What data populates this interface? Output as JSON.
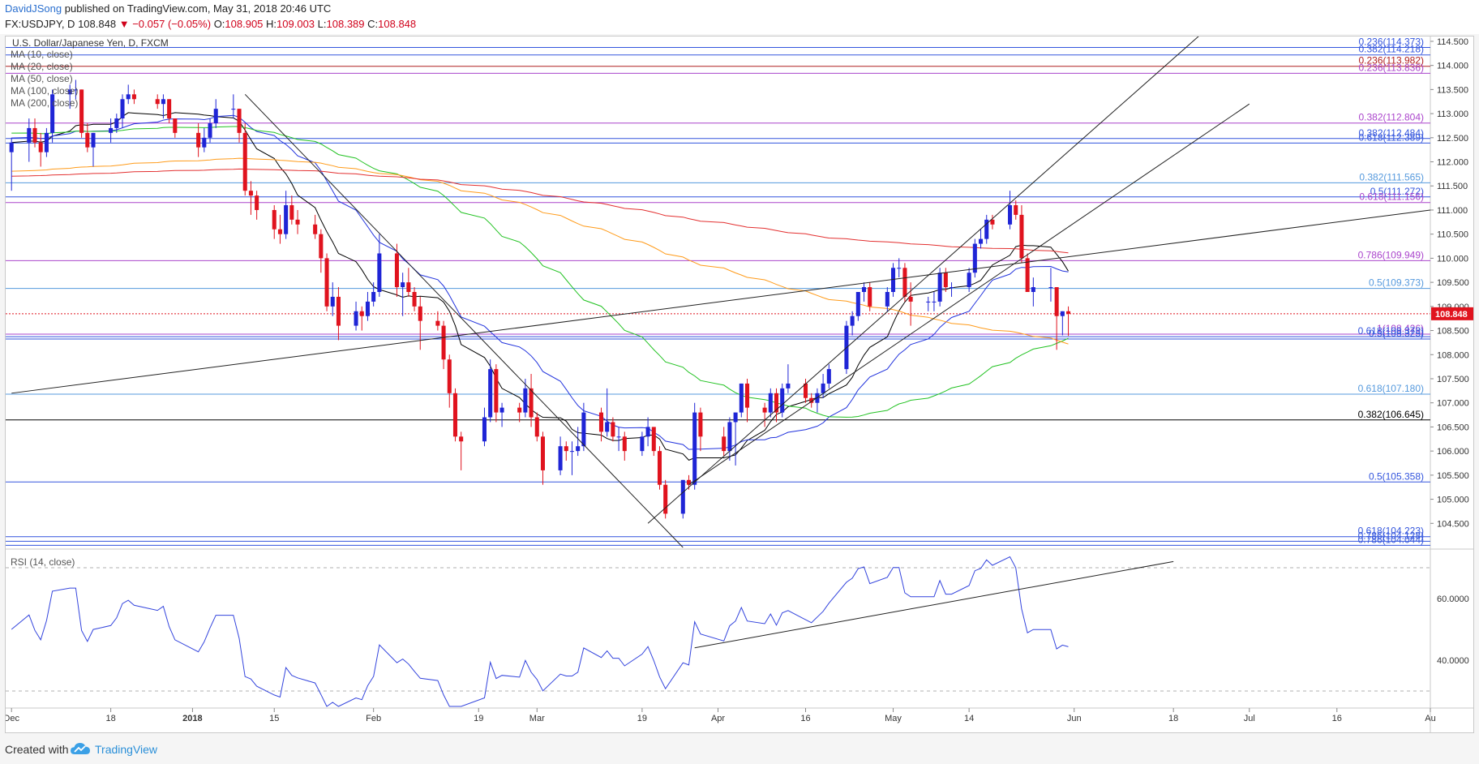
{
  "header": {
    "author": "DavidJSong",
    "published_text": "published on TradingView.com, May 31, 2018 20:46 UTC",
    "symbol": "FX:USDJPY, D",
    "last": "108.848",
    "change": "−0.057 (−0.05%)",
    "open_label": "O:",
    "open": "108.905",
    "high_label": "H:",
    "high": "109.003",
    "low_label": "L:",
    "low": "108.389",
    "close_label": "C:",
    "close": "108.848"
  },
  "legend": {
    "title": "U.S. Dollar/Japanese Yen, D, FXCM",
    "items": [
      "MA (10, close)",
      "MA (20, close)",
      "MA (50, close)",
      "MA (100, close)",
      "MA (200, close)"
    ]
  },
  "rsi": {
    "label": "RSI (14, close)"
  },
  "footer": {
    "created_with": "Created with",
    "brand": "TradingView"
  },
  "colors": {
    "up": "#1f25d6",
    "down": "#e0131e",
    "ma10": "#000000",
    "ma20": "#2233dd",
    "ma50": "#22c222",
    "ma100": "#ff9b1a",
    "ma200": "#e33030",
    "last_price_badge": "#e0131e"
  },
  "chart_data": {
    "type": "candlestick",
    "title": "U.S. Dollar/Japanese Yen, D, FXCM",
    "ylim": [
      104.0,
      114.6
    ],
    "y_ticks": [
      "114.500",
      "114.000",
      "113.500",
      "113.000",
      "112.500",
      "112.000",
      "111.500",
      "111.000",
      "110.500",
      "110.000",
      "109.500",
      "109.000",
      "108.500",
      "108.000",
      "107.500",
      "107.000",
      "106.500",
      "106.000",
      "105.500",
      "105.000",
      "104.500"
    ],
    "x_ticks": [
      "Dec",
      "18",
      "2018",
      "15",
      "Feb",
      "19",
      "Mar",
      "19",
      "Apr",
      "16",
      "May",
      "14",
      "Jun",
      "18",
      "Jul",
      "16",
      "Au"
    ],
    "last_price": 108.848,
    "last_price_label": "108.848",
    "candles": [
      [
        "2017-12-01",
        112.2,
        112.5,
        111.4,
        112.4
      ],
      [
        "2017-12-04",
        112.4,
        112.9,
        112.0,
        112.7
      ],
      [
        "2017-12-05",
        112.7,
        112.9,
        112.3,
        112.4
      ],
      [
        "2017-12-06",
        112.4,
        112.6,
        111.9,
        112.2
      ],
      [
        "2017-12-07",
        112.2,
        112.7,
        112.1,
        112.6
      ],
      [
        "2017-12-08",
        112.6,
        113.5,
        112.4,
        113.4
      ],
      [
        "2017-12-11",
        113.4,
        113.6,
        113.1,
        113.5
      ],
      [
        "2017-12-12",
        113.5,
        113.7,
        113.3,
        113.5
      ],
      [
        "2017-12-13",
        113.5,
        113.5,
        112.5,
        112.6
      ],
      [
        "2017-12-14",
        112.6,
        112.8,
        112.2,
        112.3
      ],
      [
        "2017-12-15",
        112.3,
        112.6,
        111.9,
        112.6
      ],
      [
        "2017-12-18",
        112.6,
        112.9,
        112.4,
        112.7
      ],
      [
        "2017-12-19",
        112.7,
        113.0,
        112.6,
        112.9
      ],
      [
        "2017-12-20",
        112.9,
        113.4,
        112.7,
        113.3
      ],
      [
        "2017-12-21",
        113.3,
        113.6,
        113.2,
        113.4
      ],
      [
        "2017-12-22",
        113.4,
        113.5,
        113.2,
        113.3
      ],
      [
        "2017-12-26",
        113.3,
        113.4,
        113.1,
        113.2
      ],
      [
        "2017-12-27",
        113.2,
        113.4,
        112.9,
        113.3
      ],
      [
        "2017-12-28",
        113.3,
        113.3,
        112.8,
        112.9
      ],
      [
        "2017-12-29",
        112.9,
        112.9,
        112.5,
        112.6
      ],
      [
        "2018-01-02",
        112.6,
        112.8,
        112.1,
        112.3
      ],
      [
        "2018-01-03",
        112.3,
        112.7,
        112.2,
        112.5
      ],
      [
        "2018-01-04",
        112.5,
        112.9,
        112.4,
        112.8
      ],
      [
        "2018-01-05",
        112.8,
        113.3,
        112.7,
        113.1
      ],
      [
        "2018-01-08",
        113.1,
        113.4,
        112.9,
        113.1
      ],
      [
        "2018-01-09",
        113.1,
        113.1,
        112.4,
        112.6
      ],
      [
        "2018-01-10",
        112.6,
        112.8,
        111.3,
        111.4
      ],
      [
        "2018-01-11",
        111.4,
        111.6,
        110.9,
        111.3
      ],
      [
        "2018-01-12",
        111.3,
        111.4,
        110.8,
        111.0
      ],
      [
        "2018-01-15",
        111.0,
        111.1,
        110.4,
        110.6
      ],
      [
        "2018-01-16",
        110.6,
        110.9,
        110.3,
        110.5
      ],
      [
        "2018-01-17",
        110.5,
        111.4,
        110.4,
        111.1
      ],
      [
        "2018-01-18",
        111.1,
        111.3,
        110.7,
        110.8
      ],
      [
        "2018-01-19",
        110.8,
        111.0,
        110.5,
        110.7
      ],
      [
        "2018-01-22",
        110.7,
        110.9,
        110.4,
        110.5
      ],
      [
        "2018-01-23",
        110.5,
        110.6,
        109.7,
        110.0
      ],
      [
        "2018-01-24",
        110.0,
        110.1,
        108.9,
        109.0
      ],
      [
        "2018-01-25",
        109.0,
        109.5,
        108.8,
        109.2
      ],
      [
        "2018-01-26",
        109.2,
        109.4,
        108.3,
        108.6
      ],
      [
        "2018-01-29",
        108.6,
        109.1,
        108.5,
        108.9
      ],
      [
        "2018-01-30",
        108.9,
        109.0,
        108.5,
        108.8
      ],
      [
        "2018-01-31",
        108.8,
        109.3,
        108.7,
        109.1
      ],
      [
        "2018-02-01",
        109.1,
        109.5,
        109.0,
        109.3
      ],
      [
        "2018-02-02",
        109.3,
        110.5,
        109.2,
        110.1
      ],
      [
        "2018-02-05",
        110.1,
        110.3,
        109.2,
        109.4
      ],
      [
        "2018-02-06",
        109.4,
        109.7,
        108.8,
        109.5
      ],
      [
        "2018-02-07",
        109.5,
        109.8,
        109.2,
        109.3
      ],
      [
        "2018-02-08",
        109.3,
        109.4,
        108.9,
        109.0
      ],
      [
        "2018-02-09",
        109.0,
        109.2,
        108.1,
        108.7
      ],
      [
        "2018-02-12",
        108.7,
        108.9,
        108.5,
        108.6
      ],
      [
        "2018-02-13",
        108.6,
        108.7,
        107.7,
        107.9
      ],
      [
        "2018-02-14",
        107.9,
        108.0,
        106.9,
        107.2
      ],
      [
        "2018-02-15",
        107.2,
        107.3,
        106.2,
        106.3
      ],
      [
        "2018-02-16",
        106.3,
        106.4,
        105.6,
        106.2
      ],
      [
        "2018-02-20",
        106.2,
        106.9,
        106.1,
        106.7
      ],
      [
        "2018-02-21",
        106.7,
        107.9,
        106.6,
        107.7
      ],
      [
        "2018-02-22",
        107.7,
        107.8,
        106.6,
        106.8
      ],
      [
        "2018-02-23",
        106.8,
        107.0,
        106.5,
        106.9
      ],
      [
        "2018-02-26",
        106.9,
        107.0,
        106.6,
        106.8
      ],
      [
        "2018-02-27",
        106.8,
        107.5,
        106.7,
        107.3
      ],
      [
        "2018-02-28",
        107.3,
        107.6,
        106.5,
        106.7
      ],
      [
        "2018-03-01",
        106.7,
        106.8,
        106.2,
        106.3
      ],
      [
        "2018-03-02",
        106.3,
        106.4,
        105.3,
        105.6
      ],
      [
        "2018-03-05",
        105.6,
        106.3,
        105.5,
        106.1
      ],
      [
        "2018-03-06",
        106.1,
        106.2,
        105.8,
        106.0
      ],
      [
        "2018-03-07",
        106.0,
        106.2,
        105.5,
        106.0
      ],
      [
        "2018-03-08",
        106.0,
        106.5,
        105.9,
        106.1
      ],
      [
        "2018-03-09",
        106.1,
        107.0,
        106.0,
        106.8
      ],
      [
        "2018-03-12",
        106.8,
        106.9,
        106.2,
        106.4
      ],
      [
        "2018-03-13",
        106.4,
        107.3,
        106.3,
        106.6
      ],
      [
        "2018-03-14",
        106.6,
        106.7,
        106.2,
        106.3
      ],
      [
        "2018-03-15",
        106.3,
        106.5,
        106.0,
        106.3
      ],
      [
        "2018-03-16",
        106.3,
        106.4,
        105.8,
        106.0
      ],
      [
        "2018-03-19",
        106.0,
        106.4,
        105.9,
        106.3
      ],
      [
        "2018-03-20",
        106.3,
        106.7,
        106.1,
        106.5
      ],
      [
        "2018-03-21",
        106.5,
        106.5,
        105.9,
        106.0
      ],
      [
        "2018-03-22",
        106.0,
        106.1,
        105.2,
        105.3
      ],
      [
        "2018-03-23",
        105.3,
        105.4,
        104.6,
        104.7
      ],
      [
        "2018-03-26",
        104.7,
        105.4,
        104.6,
        105.4
      ],
      [
        "2018-03-27",
        105.4,
        105.5,
        105.2,
        105.3
      ],
      [
        "2018-03-28",
        105.3,
        107.0,
        105.2,
        106.8
      ],
      [
        "2018-03-29",
        106.8,
        106.9,
        106.0,
        106.3
      ],
      [
        "2018-04-02",
        106.3,
        106.5,
        105.9,
        106.0
      ],
      [
        "2018-04-03",
        106.0,
        106.7,
        105.8,
        106.6
      ],
      [
        "2018-04-04",
        106.6,
        106.8,
        105.7,
        106.8
      ],
      [
        "2018-04-05",
        106.8,
        107.4,
        106.7,
        107.4
      ],
      [
        "2018-04-06",
        107.4,
        107.5,
        106.6,
        106.9
      ],
      [
        "2018-04-09",
        106.9,
        107.0,
        106.5,
        106.8
      ],
      [
        "2018-04-10",
        106.8,
        107.3,
        106.7,
        107.2
      ],
      [
        "2018-04-11",
        107.2,
        107.3,
        106.6,
        106.8
      ],
      [
        "2018-04-12",
        106.8,
        107.4,
        106.7,
        107.3
      ],
      [
        "2018-04-13",
        107.3,
        107.8,
        107.2,
        107.4
      ],
      [
        "2018-04-16",
        107.4,
        107.5,
        107.0,
        107.1
      ],
      [
        "2018-04-17",
        107.1,
        107.2,
        106.9,
        107.0
      ],
      [
        "2018-04-18",
        107.0,
        107.3,
        106.8,
        107.2
      ],
      [
        "2018-04-19",
        107.2,
        107.6,
        107.1,
        107.4
      ],
      [
        "2018-04-20",
        107.4,
        107.8,
        107.3,
        107.7
      ],
      [
        "2018-04-23",
        107.7,
        108.7,
        107.6,
        108.6
      ],
      [
        "2018-04-24",
        108.6,
        108.9,
        108.4,
        108.8
      ],
      [
        "2018-04-25",
        108.8,
        109.3,
        108.7,
        109.3
      ],
      [
        "2018-04-26",
        109.3,
        109.5,
        109.1,
        109.4
      ],
      [
        "2018-04-27",
        109.4,
        109.5,
        108.9,
        109.0
      ],
      [
        "2018-04-30",
        109.0,
        109.4,
        108.9,
        109.3
      ],
      [
        "2018-05-01",
        109.3,
        109.9,
        109.2,
        109.8
      ],
      [
        "2018-05-02",
        109.8,
        110.0,
        109.6,
        109.8
      ],
      [
        "2018-05-03",
        109.8,
        109.9,
        109.1,
        109.2
      ],
      [
        "2018-05-04",
        109.2,
        109.5,
        108.6,
        109.1
      ],
      [
        "2018-05-07",
        109.1,
        109.2,
        108.9,
        109.1
      ],
      [
        "2018-05-08",
        109.1,
        109.3,
        108.9,
        109.1
      ],
      [
        "2018-05-09",
        109.1,
        109.8,
        109.0,
        109.7
      ],
      [
        "2018-05-10",
        109.7,
        109.8,
        109.3,
        109.4
      ],
      [
        "2018-05-11",
        109.4,
        109.5,
        109.2,
        109.4
      ],
      [
        "2018-05-14",
        109.4,
        109.8,
        109.3,
        109.7
      ],
      [
        "2018-05-15",
        109.7,
        110.4,
        109.6,
        110.3
      ],
      [
        "2018-05-16",
        110.3,
        110.6,
        110.2,
        110.4
      ],
      [
        "2018-05-17",
        110.4,
        110.9,
        110.3,
        110.8
      ],
      [
        "2018-05-18",
        110.8,
        110.9,
        110.6,
        110.7
      ],
      [
        "2018-05-21",
        110.7,
        111.4,
        110.6,
        111.1
      ],
      [
        "2018-05-22",
        111.1,
        111.2,
        110.8,
        110.9
      ],
      [
        "2018-05-23",
        110.9,
        111.1,
        109.9,
        110.0
      ],
      [
        "2018-05-24",
        110.0,
        110.1,
        109.3,
        109.3
      ],
      [
        "2018-05-25",
        109.3,
        109.6,
        109.0,
        109.4
      ],
      [
        "2018-05-28",
        109.4,
        109.8,
        109.1,
        109.4
      ],
      [
        "2018-05-29",
        109.4,
        109.4,
        108.1,
        108.8
      ],
      [
        "2018-05-30",
        108.8,
        108.9,
        108.4,
        108.9
      ],
      [
        "2018-05-31",
        108.9,
        109.0,
        108.389,
        108.848
      ]
    ],
    "horizontal_levels": [
      {
        "value": 114.373,
        "label": "0.236(114.373)"
      },
      {
        "value": 114.218,
        "label": "0.382(114.218)"
      },
      {
        "value": 113.982,
        "label": "0.236(113.982)"
      },
      {
        "value": 113.836,
        "label": "0.236(113.836)"
      },
      {
        "value": 112.804,
        "label": "0.382(112.804)"
      },
      {
        "value": 112.484,
        "label": "0.382(112.484)"
      },
      {
        "value": 112.389,
        "label": "0.618(112.389)"
      },
      {
        "value": 111.565,
        "label": "0.382(111.565)"
      },
      {
        "value": 111.272,
        "label": "0.5(111.272)"
      },
      {
        "value": 111.156,
        "label": "0.618(111.156)"
      },
      {
        "value": 109.949,
        "label": "0.786(109.949)"
      },
      {
        "value": 109.373,
        "label": "0.5(109.373)"
      },
      {
        "value": 108.426,
        "label": "1(108.426)"
      },
      {
        "value": 108.373,
        "label": "0.618(108.373)"
      },
      {
        "value": 108.325,
        "label": "0.5(108.325)"
      },
      {
        "value": 107.18,
        "label": "0.618(107.180)"
      },
      {
        "value": 106.645,
        "label": "0.382(106.645)"
      },
      {
        "value": 105.358,
        "label": "0.5(105.358)"
      },
      {
        "value": 104.223,
        "label": "0.618(104.223)"
      },
      {
        "value": 104.128,
        "label": "0.786(104.128)"
      },
      {
        "value": 104.044,
        "label": "0.786(104.044)"
      }
    ],
    "rsi_ylim": [
      25,
      75
    ],
    "rsi_ticks": [
      "60.0000",
      "40.0000"
    ]
  }
}
